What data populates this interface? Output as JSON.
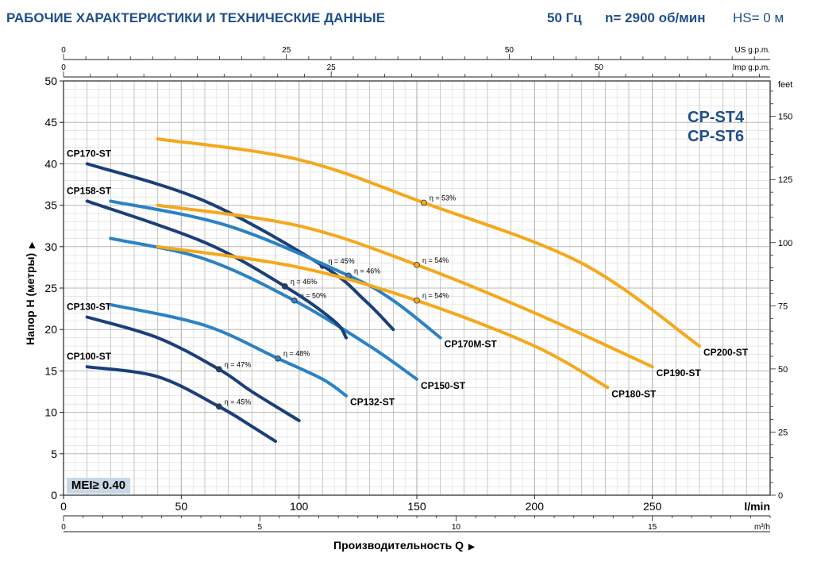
{
  "header": {
    "title": "РАБОЧИЕ ХАРАКТЕРИСТИКИ И ТЕХНИЧЕСКИЕ ДАННЫЕ",
    "frequency": "50 Гц",
    "speed": "n= 2900 об/мин",
    "hs": "HS= 0 м"
  },
  "models": [
    "CP-ST4",
    "CP-ST6"
  ],
  "badge": "MEI≥ 0.40",
  "colors": {
    "dark_blue": "#1b3f78",
    "mid_blue": "#2b82c4",
    "orange": "#f5a81c",
    "title_blue": "#1f4e8c",
    "grid_major": "#b8b8b8",
    "grid_minor": "#dadada"
  },
  "chart_data": {
    "type": "line",
    "xlabel": "Производительность Q",
    "ylabel": "Напор H (метры)",
    "x_unit": "l/min",
    "xlim": [
      0,
      300
    ],
    "ylim": [
      0,
      50
    ],
    "x_ticks": [
      0,
      50,
      100,
      150,
      200,
      250
    ],
    "y_ticks": [
      0,
      5,
      10,
      15,
      20,
      25,
      30,
      35,
      40,
      45,
      50
    ],
    "grid": true,
    "secondary_axes": {
      "us_gpm": {
        "label": "US g.p.m.",
        "ticks": [
          0,
          25,
          50
        ]
      },
      "imp_gpm": {
        "label": "Imp g.p.m.",
        "ticks": [
          0,
          25,
          50
        ]
      },
      "m3h": {
        "label": "m³/h",
        "ticks": [
          0,
          5,
          10,
          15
        ]
      },
      "feet": {
        "label": "feet",
        "ticks": [
          0,
          25,
          50,
          75,
          100,
          125,
          150
        ]
      }
    },
    "series": [
      {
        "name": "CP100-ST",
        "color": "dark_blue",
        "x": [
          10,
          40,
          66,
          80,
          90
        ],
        "y": [
          15.5,
          14.3,
          10.7,
          8.3,
          6.5
        ],
        "efficiency": {
          "label": "η = 45%",
          "x": 66,
          "y": 10.7
        }
      },
      {
        "name": "CP130-ST",
        "color": "dark_blue",
        "x": [
          10,
          40,
          66,
          80,
          100
        ],
        "y": [
          21.5,
          19,
          15.2,
          12.5,
          9
        ],
        "efficiency": {
          "label": "η = 47%",
          "x": 66,
          "y": 15.2
        }
      },
      {
        "name": "CP132-ST",
        "color": "mid_blue",
        "x": [
          20,
          60,
          91,
          110,
          120
        ],
        "y": [
          23,
          20.5,
          16.5,
          14,
          12
        ],
        "efficiency": {
          "label": "η = 48%",
          "x": 91,
          "y": 16.5
        }
      },
      {
        "name": "CP150-ST",
        "color": "mid_blue",
        "x": [
          20,
          60,
          98,
          130,
          150
        ],
        "y": [
          31,
          28.5,
          23.5,
          18,
          14
        ],
        "efficiency": {
          "label": "η = 50%",
          "x": 98,
          "y": 23.5
        }
      },
      {
        "name": "CP158-ST",
        "color": "dark_blue",
        "x": [
          10,
          60,
          94,
          115,
          120
        ],
        "y": [
          35.5,
          30.5,
          25.2,
          21,
          19
        ],
        "efficiency": {
          "label": "η = 46%",
          "x": 94,
          "y": 25.2
        }
      },
      {
        "name": "CP170-ST",
        "color": "dark_blue",
        "x": [
          10,
          60,
          110,
          128,
          140
        ],
        "y": [
          40,
          35.5,
          27.7,
          23.5,
          20
        ],
        "efficiency": {
          "label": "η = 45%",
          "x": 110,
          "y": 27.7
        }
      },
      {
        "name": "CP170M-ST",
        "color": "mid_blue",
        "x": [
          20,
          70,
          121,
          140,
          160
        ],
        "y": [
          35.5,
          32.5,
          26.5,
          23.5,
          19
        ],
        "efficiency": {
          "label": "η = 46%",
          "x": 121,
          "y": 26.5
        }
      },
      {
        "name": "CP180-ST",
        "color": "orange",
        "x": [
          40,
          100,
          150,
          200,
          231
        ],
        "y": [
          30,
          27.5,
          23.5,
          18,
          13
        ],
        "efficiency": {
          "label": "η = 54%",
          "x": 150,
          "y": 23.5
        }
      },
      {
        "name": "CP190-ST",
        "color": "orange",
        "x": [
          40,
          100,
          150,
          200,
          250
        ],
        "y": [
          35,
          32.5,
          27.8,
          22,
          15.5
        ],
        "efficiency": {
          "label": "η = 54%",
          "x": 150,
          "y": 27.8
        }
      },
      {
        "name": "CP200-ST",
        "color": "orange",
        "x": [
          40,
          100,
          153,
          220,
          270
        ],
        "y": [
          43,
          40.5,
          35.3,
          28,
          18
        ],
        "efficiency": {
          "label": "η = 53%",
          "x": 153,
          "y": 35.3
        }
      }
    ]
  }
}
